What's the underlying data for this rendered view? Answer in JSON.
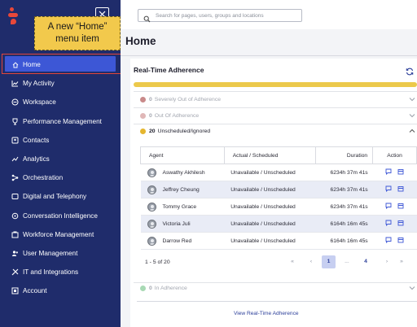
{
  "callout": {
    "line1": "A new “Home”",
    "line2": "menu item"
  },
  "collapse_icon": "close-icon",
  "search": {
    "placeholder": "Search for pages, users, groups and locations"
  },
  "sidebar": {
    "items": [
      {
        "label": "Home",
        "icon": "home-icon"
      },
      {
        "label": "My Activity",
        "icon": "chart-icon"
      },
      {
        "label": "Workspace",
        "icon": "workspace-icon"
      },
      {
        "label": "Performance Management",
        "icon": "trophy-icon"
      },
      {
        "label": "Contacts",
        "icon": "contacts-icon"
      },
      {
        "label": "Analytics",
        "icon": "analytics-icon"
      },
      {
        "label": "Orchestration",
        "icon": "orchestration-icon"
      },
      {
        "label": "Digital and Telephony",
        "icon": "telephony-icon"
      },
      {
        "label": "Conversation Intelligence",
        "icon": "conversation-icon"
      },
      {
        "label": "Workforce Management",
        "icon": "workforce-icon"
      },
      {
        "label": "User Management",
        "icon": "user-icon"
      },
      {
        "label": "IT and Integrations",
        "icon": "integrations-icon"
      },
      {
        "label": "Account",
        "icon": "account-icon"
      }
    ]
  },
  "page": {
    "title": "Home"
  },
  "adherence": {
    "title": "Real-Time Adherence",
    "statuses": [
      {
        "count": "0",
        "label": "Severely Out of Adherence",
        "color": "#c98a8a"
      },
      {
        "count": "0",
        "label": "Out Of Adherence",
        "color": "#e0b7b7"
      },
      {
        "count": "20",
        "label": "Unscheduled/Ignored",
        "color": "#e5b62f"
      },
      {
        "count": "0",
        "label": "In Adherence",
        "color": "#a8d9b4"
      }
    ],
    "columns": [
      "Agent",
      "Actual / Scheduled",
      "Duration",
      "Action"
    ],
    "rows": [
      {
        "agent": "Aswathy Akhilesh",
        "status": "Unavailable / Unscheduled",
        "duration": "6234h 37m 41s"
      },
      {
        "agent": "Jeffrey Cheung",
        "status": "Unavailable / Unscheduled",
        "duration": "6234h 37m 41s"
      },
      {
        "agent": "Tommy Grace",
        "status": "Unavailable / Unscheduled",
        "duration": "6234h 37m 41s"
      },
      {
        "agent": "Victoria Juli",
        "status": "Unavailable / Unscheduled",
        "duration": "6164h 16m 45s"
      },
      {
        "agent": "Darrow Red",
        "status": "Unavailable / Unscheduled",
        "duration": "6164h 16m 45s"
      }
    ],
    "pagination": {
      "range": "1 - 5 of 20",
      "first": "«",
      "prev": "‹",
      "current": "1",
      "ellipsis": "...",
      "last_page": "4",
      "next": "›",
      "last": "»"
    },
    "view_link": "View Real-Time Adherence"
  },
  "colors": {
    "sidebar": "#1f2c6b",
    "active": "#3d57d6",
    "accent": "#2c3f9a",
    "progress": "#ecc94b",
    "callout": "#f2c94c"
  }
}
